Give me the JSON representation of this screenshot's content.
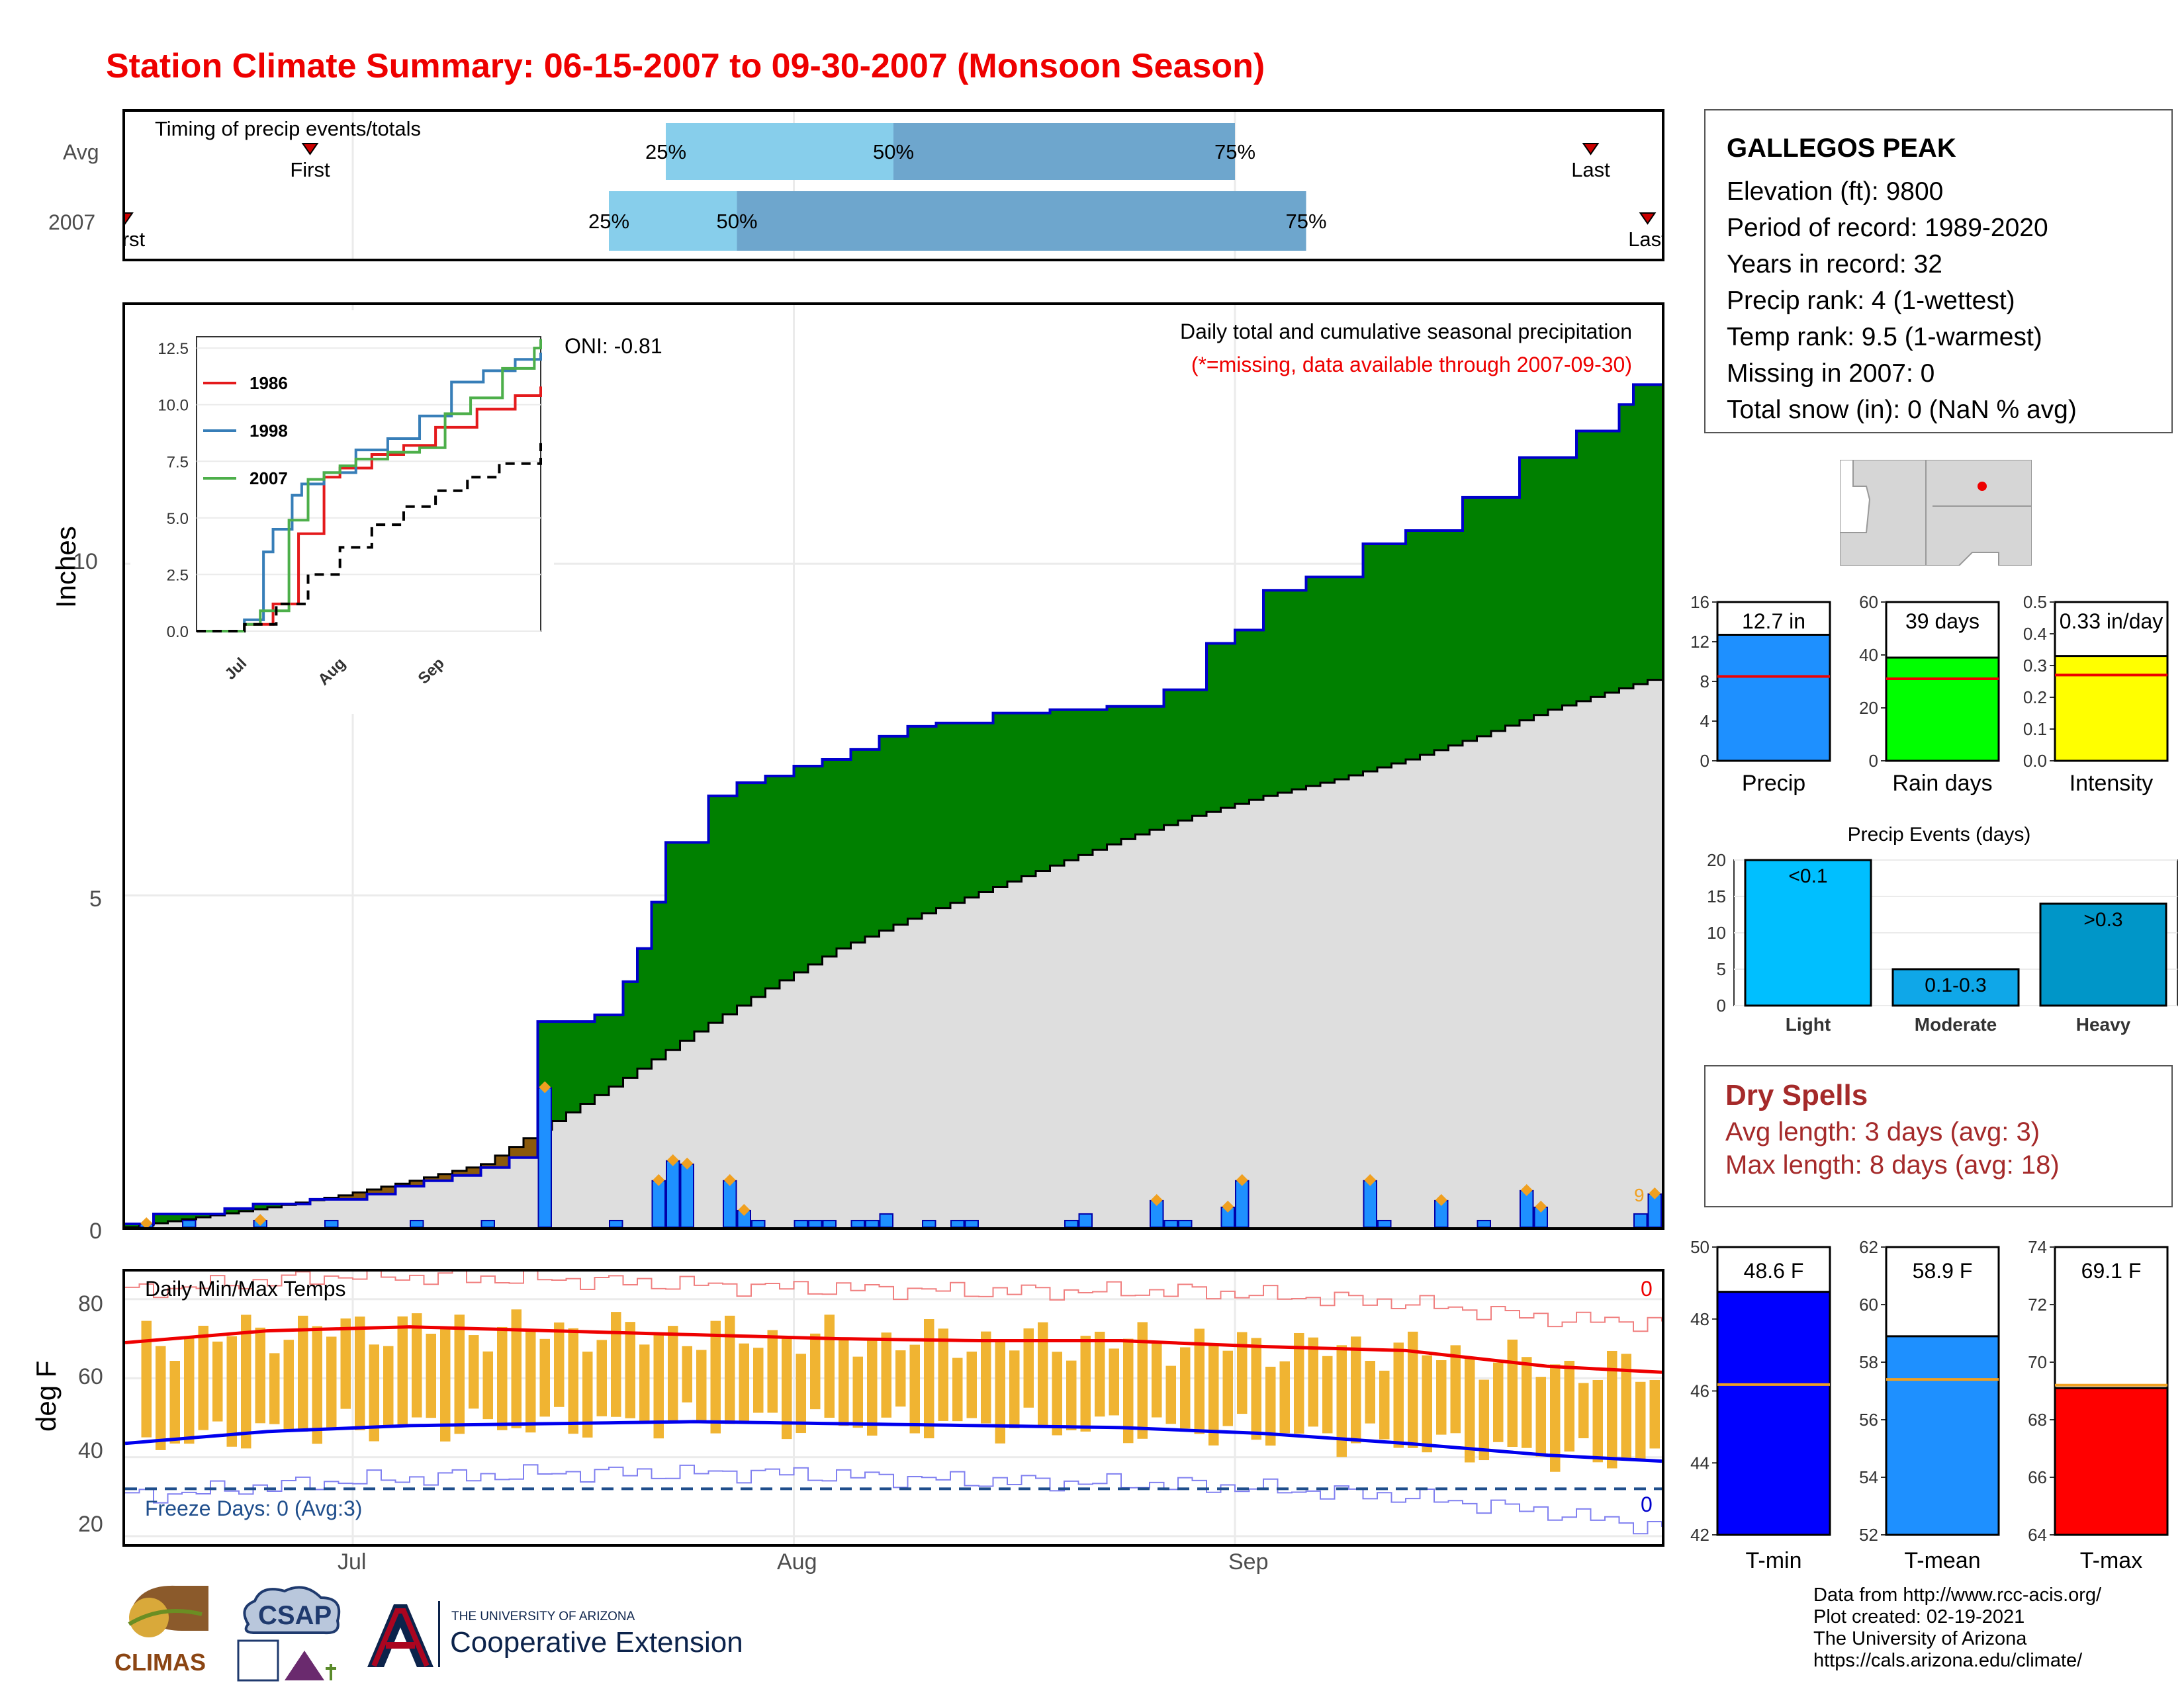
{
  "title": "Station Climate Summary: 06-15-2007 to 09-30-2007 (Monsoon Season)",
  "station": {
    "name": "GALLEGOS PEAK",
    "lines": [
      "Elevation (ft): 9800",
      "Period of record: 1989-2020",
      "Years in record: 32",
      "Precip rank: 4 (1-wettest)",
      "Temp rank: 9.5 (1-warmest)",
      "Missing in 2007: 0",
      "Total snow (in): 0 (NaN % avg)"
    ]
  },
  "colors": {
    "title": "#ee0000",
    "green": "#008000",
    "brown": "#8b5a0b",
    "gray_fill": "#dedede",
    "blue_line": "#0000cc",
    "daily_bar": "#1e90ff",
    "light_blue": "#87ceeb",
    "mid_blue": "#6ea6cd",
    "temp_bar": "#f0b432",
    "red": "#ee0000",
    "blue": "#0000ee"
  },
  "timing": {
    "title": "Timing of precip events/totals",
    "row_labels": [
      "Avg",
      "2007"
    ],
    "avg": {
      "first": "06-28",
      "q25": "07-23",
      "q50": "08-08",
      "q75": "09-01",
      "last": "09-26",
      "labels": {
        "first": "First",
        "q25": "25%",
        "q50": "50%",
        "q75": "75%",
        "last": "Last"
      }
    },
    "y2007": {
      "first": "06-15",
      "q25": "07-19",
      "q50": "07-28",
      "q75": "09-06",
      "last": "09-30",
      "labels": {
        "first": "First",
        "q25": "25%",
        "q50": "50%",
        "q75": "75%",
        "last": "Last"
      }
    }
  },
  "main": {
    "ylabel": "Inches",
    "annotation_title": "Daily total and cumulative seasonal precipitation",
    "annotation_missing": "(*=missing, data available through 2007-09-30)",
    "oni": "ONI: -0.81",
    "corner_value": "9",
    "x_ticks": [
      "Jul",
      "Aug",
      "Sep"
    ],
    "y_ticks": [
      "0",
      "5",
      "10"
    ]
  },
  "inset": {
    "legend": [
      "1986",
      "1998",
      "2007"
    ],
    "x_ticks": [
      "Jul",
      "Aug",
      "Sep"
    ],
    "y_ticks": [
      "0.0",
      "2.5",
      "5.0",
      "7.5",
      "10.0",
      "12.5"
    ]
  },
  "temps": {
    "ylabel": "deg F",
    "title": "Daily Min/Max Temps",
    "freeze_text": "Freeze Days: 0 (Avg:3)",
    "corner_top": "0",
    "corner_bottom": "0",
    "y_ticks": [
      "20",
      "40",
      "60",
      "80"
    ],
    "x_ticks": [
      "Jul",
      "Aug",
      "Sep"
    ]
  },
  "mini_precip": [
    {
      "label": "Precip",
      "value_text": "12.7 in",
      "ticks": [
        "0",
        "4",
        "8",
        "12",
        "16"
      ]
    },
    {
      "label": "Rain days",
      "value_text": "39 days",
      "ticks": [
        "0",
        "20",
        "40",
        "60"
      ]
    },
    {
      "label": "Intensity",
      "value_text": "0.33 in/day",
      "ticks": [
        "0.0",
        "0.1",
        "0.2",
        "0.3",
        "0.4",
        "0.5"
      ]
    }
  ],
  "events": {
    "title": "Precip Events (days)",
    "categories": [
      "Light",
      "Moderate",
      "Heavy"
    ],
    "bar_labels": [
      "<0.1",
      "0.1-0.3",
      ">0.3"
    ],
    "ticks": [
      "0",
      "5",
      "10",
      "15",
      "20"
    ]
  },
  "dry_spells": {
    "title": "Dry Spells",
    "avg": "Avg length: 3 days (avg: 3)",
    "max": "Max length: 8 days (avg: 18)"
  },
  "mini_temp": [
    {
      "label": "T-min",
      "value_text": "48.6 F",
      "ticks": [
        "42",
        "44",
        "46",
        "48",
        "50"
      ]
    },
    {
      "label": "T-mean",
      "value_text": "58.9 F",
      "ticks": [
        "52",
        "54",
        "56",
        "58",
        "60",
        "62"
      ]
    },
    {
      "label": "T-max",
      "value_text": "69.1 F",
      "ticks": [
        "64",
        "66",
        "68",
        "70",
        "72",
        "74"
      ]
    }
  ],
  "credits": [
    "Data from http://www.rcc-acis.org/",
    "Plot created: 02-19-2021",
    "The University of Arizona",
    "https://cals.arizona.edu/climate/"
  ],
  "logos": {
    "climas": "CLIMAS",
    "csap": "CSAP",
    "ua_line1": "THE UNIVERSITY OF ARIZONA",
    "ua_line2": "Cooperative Extension"
  },
  "chart_data": [
    {
      "type": "area",
      "title": "Daily total and cumulative seasonal precipitation",
      "ylabel": "Inches",
      "xlim": [
        "2007-06-15",
        "2007-09-30"
      ],
      "ylim": [
        0,
        13.9
      ],
      "series": [
        {
          "name": "2007",
          "x": [
            "06-15",
            "06-17",
            "06-22",
            "06-24",
            "06-28",
            "07-02",
            "07-04",
            "07-06",
            "07-08",
            "07-10",
            "07-12",
            "07-14",
            "07-18",
            "07-20",
            "07-21",
            "07-22",
            "07-23",
            "07-26",
            "07-28",
            "07-30",
            "08-01",
            "08-03",
            "08-05",
            "08-07",
            "08-09",
            "08-11",
            "08-15",
            "08-19",
            "08-23",
            "08-27",
            "08-30",
            "09-01",
            "09-03",
            "09-06",
            "09-10",
            "09-13",
            "09-17",
            "09-21",
            "09-25",
            "09-28",
            "09-29"
          ],
          "values": [
            0.05,
            0.2,
            0.28,
            0.35,
            0.42,
            0.5,
            0.62,
            0.7,
            0.78,
            0.9,
            1.05,
            3.1,
            3.2,
            3.7,
            4.2,
            4.9,
            5.8,
            6.5,
            6.7,
            6.8,
            6.95,
            7.05,
            7.2,
            7.4,
            7.55,
            7.6,
            7.75,
            7.8,
            7.85,
            8.1,
            8.8,
            9.0,
            9.6,
            9.8,
            10.3,
            10.5,
            11.0,
            11.6,
            12.0,
            12.4,
            12.7
          ]
        },
        {
          "name": "Avg",
          "x": [
            "06-15",
            "06-20",
            "06-25",
            "06-30",
            "07-05",
            "07-10",
            "07-15",
            "07-20",
            "07-25",
            "07-30",
            "08-04",
            "08-09",
            "08-14",
            "08-19",
            "08-24",
            "08-29",
            "09-03",
            "09-08",
            "09-13",
            "09-18",
            "09-23",
            "09-30"
          ],
          "values": [
            0.0,
            0.15,
            0.3,
            0.48,
            0.7,
            0.95,
            1.6,
            2.25,
            2.95,
            3.6,
            4.2,
            4.65,
            5.05,
            5.45,
            5.85,
            6.2,
            6.5,
            6.75,
            7.05,
            7.4,
            7.8,
            8.25
          ]
        }
      ],
      "daily": {
        "x": [
          "06-16",
          "06-19",
          "06-24",
          "06-29",
          "07-05",
          "07-10",
          "07-14",
          "07-19",
          "07-22",
          "07-23",
          "07-24",
          "07-27",
          "07-28",
          "07-29",
          "08-01",
          "08-02",
          "08-03",
          "08-05",
          "08-06",
          "08-07",
          "08-10",
          "08-12",
          "08-13",
          "08-20",
          "08-21",
          "08-26",
          "08-27",
          "08-28",
          "08-31",
          "09-01",
          "09-10",
          "09-11",
          "09-15",
          "09-18",
          "09-21",
          "09-22",
          "09-29",
          "09-30"
        ],
        "values": [
          0.05,
          0.1,
          0.1,
          0.1,
          0.1,
          0.1,
          2.1,
          0.1,
          0.7,
          1.0,
          0.95,
          0.7,
          0.25,
          0.1,
          0.1,
          0.1,
          0.1,
          0.1,
          0.1,
          0.2,
          0.1,
          0.1,
          0.1,
          0.1,
          0.2,
          0.4,
          0.1,
          0.1,
          0.3,
          0.7,
          0.7,
          0.1,
          0.4,
          0.1,
          0.55,
          0.3,
          0.2,
          0.5
        ]
      }
    },
    {
      "type": "line",
      "title": "",
      "legend": [
        "1986",
        "1998",
        "2007"
      ],
      "ylim": [
        0,
        13
      ],
      "series": [
        {
          "name": "1986",
          "x": [
            0,
            15,
            24,
            32,
            40,
            45,
            55,
            65,
            75,
            88,
            100,
            108
          ],
          "values": [
            0,
            0.3,
            1.2,
            4.3,
            6.8,
            7.2,
            7.8,
            8.2,
            9.0,
            9.8,
            10.4,
            10.8
          ]
        },
        {
          "name": "1998",
          "x": [
            0,
            15,
            21,
            24,
            30,
            33,
            40,
            50,
            60,
            70,
            80,
            90,
            100,
            108
          ],
          "values": [
            0,
            0.5,
            3.5,
            4.5,
            6.0,
            6.5,
            7.0,
            8.0,
            8.5,
            9.5,
            11.0,
            11.5,
            12.0,
            12.3
          ]
        },
        {
          "name": "2007",
          "x": [
            0,
            15,
            20,
            29,
            35,
            40,
            45,
            50,
            60,
            70,
            78,
            86,
            96,
            106,
            108
          ],
          "values": [
            0,
            0.3,
            0.9,
            4.9,
            6.7,
            7.0,
            7.3,
            7.6,
            7.9,
            8.1,
            9.6,
            10.3,
            11.6,
            12.5,
            12.9
          ]
        },
        {
          "name": "",
          "x": [
            0,
            15,
            25,
            35,
            45,
            55,
            65,
            75,
            85,
            95,
            108
          ],
          "values": [
            0,
            0.3,
            1.2,
            2.5,
            3.7,
            4.7,
            5.5,
            6.2,
            6.8,
            7.4,
            8.3
          ]
        }
      ]
    },
    {
      "type": "bar",
      "title": "Daily Min/Max Temps",
      "ylabel": "deg F",
      "ylim": [
        18,
        87
      ],
      "series": [
        {
          "name": "Avg max",
          "x": [
            0,
            10,
            20,
            30,
            40,
            50,
            60,
            70,
            80,
            90,
            100,
            108
          ],
          "values": [
            69,
            72,
            73,
            72,
            71,
            70,
            69.5,
            69.5,
            68,
            67,
            63,
            61.5
          ]
        },
        {
          "name": "Avg min",
          "x": [
            0,
            10,
            20,
            30,
            40,
            50,
            60,
            70,
            80,
            90,
            100,
            108
          ],
          "values": [
            43.5,
            46.5,
            48,
            48.5,
            49,
            48.5,
            48,
            47.5,
            46,
            43.5,
            40.5,
            39
          ]
        },
        {
          "name": "Record max",
          "x": [
            0,
            15,
            30,
            45,
            60,
            75,
            90,
            100,
            108
          ],
          "values": [
            82,
            86,
            85,
            83,
            82,
            82,
            79,
            75,
            74
          ]
        },
        {
          "name": "Record min",
          "x": [
            0,
            15,
            30,
            45,
            60,
            75,
            90,
            100,
            108
          ],
          "values": [
            30,
            34,
            36,
            36,
            34,
            33,
            30,
            26,
            22
          ]
        }
      ],
      "freeze_line": 32
    },
    {
      "type": "bar",
      "categories": [
        "Precip"
      ],
      "values": [
        12.7
      ],
      "avg": 8.5,
      "ylim": [
        0,
        16
      ]
    },
    {
      "type": "bar",
      "categories": [
        "Rain days"
      ],
      "values": [
        39
      ],
      "avg": 31,
      "ylim": [
        0,
        60
      ]
    },
    {
      "type": "bar",
      "categories": [
        "Intensity"
      ],
      "values": [
        0.33
      ],
      "avg": 0.27,
      "ylim": [
        0,
        0.5
      ]
    },
    {
      "type": "bar",
      "title": "Precip Events (days)",
      "categories": [
        "Light",
        "Moderate",
        "Heavy"
      ],
      "values": [
        20,
        5,
        14
      ],
      "ylim": [
        0,
        20
      ]
    },
    {
      "type": "bar",
      "categories": [
        "T-min"
      ],
      "values": [
        48.6
      ],
      "avg": 45.7,
      "ylim": [
        41,
        50
      ]
    },
    {
      "type": "bar",
      "categories": [
        "T-mean"
      ],
      "values": [
        58.9
      ],
      "avg": 57.4,
      "ylim": [
        52,
        62
      ]
    },
    {
      "type": "bar",
      "categories": [
        "T-max"
      ],
      "values": [
        69.1
      ],
      "avg": 69.2,
      "ylim": [
        64,
        74
      ]
    }
  ]
}
